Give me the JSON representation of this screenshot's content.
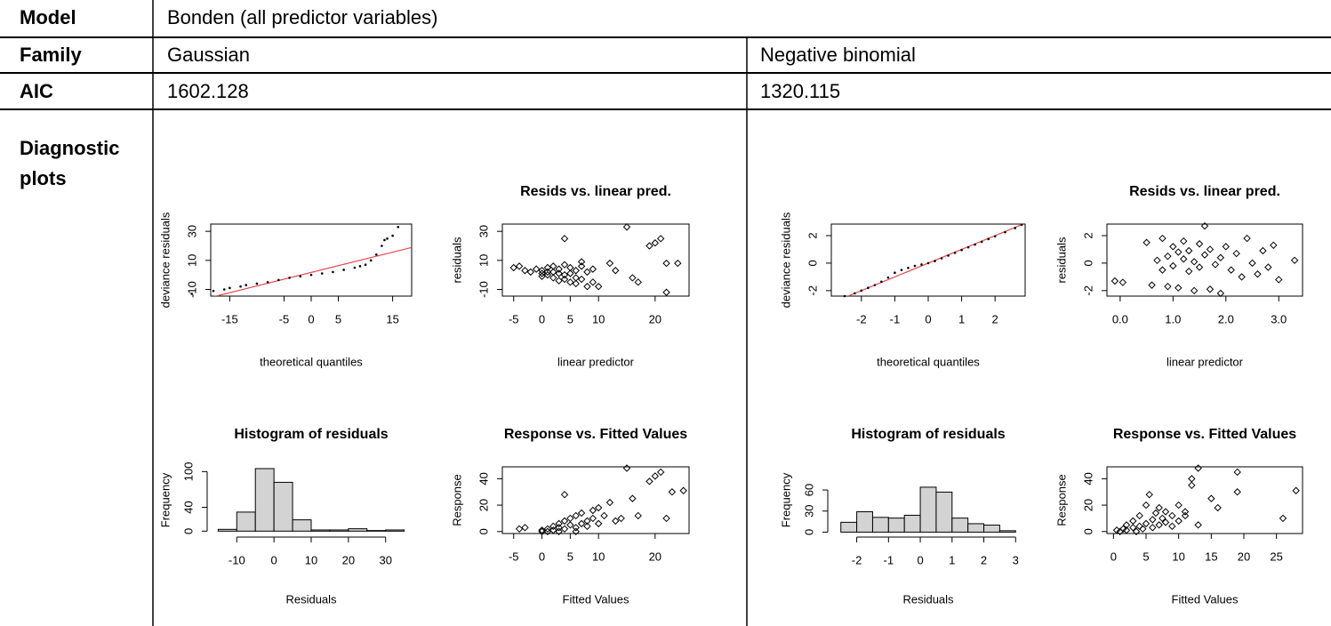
{
  "table": {
    "rows": [
      {
        "label": "Model",
        "cells": [
          "Bonden (all predictor variables)"
        ]
      },
      {
        "label": "Family",
        "cells": [
          "Gaussian",
          "Negative binomial"
        ]
      },
      {
        "label": "AIC",
        "cells": [
          1602.128,
          1320.115
        ]
      }
    ],
    "diagnostic_label": "Diagnostic plots"
  },
  "chart_data": [
    {
      "type": "qq",
      "xlabel": "theoretical quantiles",
      "ylabel": "deviance residuals",
      "xlim": [
        -18.5,
        18.5
      ],
      "ylim": [
        -14.6,
        35
      ],
      "xticks": [
        -15,
        -5,
        0,
        5,
        15
      ],
      "yticks": [
        -10,
        10,
        30
      ],
      "x": [
        -22,
        -18,
        -16,
        -15,
        -13,
        -12,
        -10,
        -8,
        -6,
        -4,
        -2,
        0,
        2,
        4,
        6,
        8,
        9,
        10,
        11,
        12,
        13,
        13.5,
        14,
        15,
        16
      ],
      "y": [
        -13,
        -11,
        -10,
        -9,
        -8,
        -7,
        -6,
        -5,
        -3.5,
        -2,
        -1,
        0,
        1,
        2,
        3.5,
        5,
        6,
        7,
        10,
        14,
        20,
        24,
        25,
        27,
        33
      ],
      "reference_line": {
        "intercept": 1.7,
        "slope": 0.93,
        "color": "#e8474f"
      }
    },
    {
      "type": "scatter",
      "title": "Resids vs. linear pred.",
      "xlabel": "linear predictor",
      "ylabel": "residuals",
      "xlim": [
        -7,
        26
      ],
      "ylim": [
        -14.6,
        35
      ],
      "xticks": [
        -5,
        0,
        5,
        10,
        20
      ],
      "yticks": [
        -10,
        10,
        30
      ],
      "x": [
        -5,
        -4,
        -3,
        -2,
        -1,
        0,
        0,
        1,
        1,
        2,
        2,
        3,
        3,
        4,
        4,
        5,
        5,
        6,
        6,
        7,
        7,
        8,
        8,
        9,
        9,
        3,
        5,
        6,
        7,
        2,
        4,
        1,
        0,
        4,
        15,
        19,
        20,
        21,
        22,
        24,
        22,
        17,
        16,
        13,
        12,
        10
      ],
      "y": [
        5,
        6,
        3,
        2,
        4,
        3,
        -1,
        5,
        0,
        6,
        -2,
        4,
        -4,
        7,
        0,
        5,
        -5,
        3,
        -6,
        6,
        -3,
        2,
        -8,
        4,
        -5,
        1,
        1,
        -2,
        9,
        2,
        -3,
        2,
        1,
        25,
        33,
        20,
        22,
        25,
        8,
        8,
        -12,
        -5,
        -2,
        3,
        8,
        -8
      ]
    },
    {
      "type": "histogram",
      "title": "Histogram of residuals",
      "xlabel": "Residuals",
      "ylabel": "Frequency",
      "xlim": [
        -17,
        37
      ],
      "ylim": [
        -4,
        108
      ],
      "xticks": [
        -10,
        0,
        10,
        20,
        30
      ],
      "yticks": [
        0,
        40,
        100
      ],
      "bins": [
        -15,
        -10,
        -5,
        0,
        5,
        10,
        15,
        20,
        25,
        30,
        35
      ],
      "counts": [
        3,
        32,
        105,
        82,
        19,
        2,
        2,
        4,
        1,
        2
      ],
      "color": "#d3d3d3"
    },
    {
      "type": "scatter",
      "title": "Response vs. Fitted Values",
      "xlabel": "Fitted Values",
      "ylabel": "Response",
      "xlim": [
        -7,
        26
      ],
      "ylim": [
        -1.5,
        49
      ],
      "xticks": [
        -5,
        0,
        5,
        10,
        20
      ],
      "yticks": [
        0,
        20,
        40
      ],
      "x": [
        -4,
        -3,
        0,
        1,
        2,
        2,
        3,
        3,
        4,
        4,
        5,
        5,
        6,
        6,
        7,
        7,
        8,
        8,
        9,
        9,
        10,
        10,
        11,
        12,
        13,
        14,
        15,
        16,
        17,
        19,
        20,
        21,
        22,
        23,
        25,
        4,
        1,
        0,
        6,
        3
      ],
      "y": [
        2,
        3,
        1,
        2,
        1,
        4,
        3,
        6,
        2,
        8,
        5,
        10,
        3,
        12,
        6,
        14,
        8,
        4,
        10,
        16,
        6,
        18,
        12,
        22,
        8,
        10,
        48,
        25,
        12,
        38,
        42,
        45,
        10,
        30,
        31,
        28,
        0,
        0,
        0,
        0
      ]
    },
    {
      "type": "qq",
      "xlabel": "theoretical quantiles",
      "ylabel": "deviance residuals",
      "xlim": [
        -2.9,
        2.9
      ],
      "ylim": [
        -2.4,
        2.84
      ],
      "xticks": [
        -2,
        -1,
        0,
        1,
        2
      ],
      "yticks": [
        -2,
        0,
        2
      ],
      "x": [
        -2.5,
        -2.2,
        -2,
        -1.8,
        -1.6,
        -1.4,
        -1.2,
        -1,
        -0.8,
        -0.6,
        -0.4,
        -0.2,
        0,
        0.2,
        0.4,
        0.6,
        0.8,
        1,
        1.2,
        1.4,
        1.6,
        1.8,
        2,
        2.3,
        2.6,
        2.8
      ],
      "y": [
        -2.4,
        -2.2,
        -2,
        -1.8,
        -1.6,
        -1.35,
        -1.05,
        -0.7,
        -0.5,
        -0.35,
        -0.2,
        -0.1,
        0,
        0.15,
        0.35,
        0.55,
        0.75,
        0.95,
        1.15,
        1.35,
        1.55,
        1.75,
        1.95,
        2.25,
        2.55,
        2.8
      ],
      "reference_line": {
        "intercept": 0,
        "slope": 1,
        "color": "#e8474f"
      }
    },
    {
      "type": "scatter",
      "title": "Resids vs. linear pred.",
      "xlabel": "linear predictor",
      "ylabel": "residuals",
      "xlim": [
        -0.25,
        3.45
      ],
      "ylim": [
        -2.4,
        2.84
      ],
      "xticks": [
        {
          "value": 0,
          "label": "0.0"
        },
        {
          "value": 1,
          "label": "1.0"
        },
        {
          "value": 2,
          "label": "2.0"
        },
        {
          "value": 3,
          "label": "3.0"
        }
      ],
      "yticks": [
        -2,
        0,
        2
      ],
      "x": [
        -0.1,
        0.05,
        0.5,
        0.6,
        0.7,
        0.8,
        0.8,
        0.9,
        0.9,
        1,
        1,
        1.1,
        1.1,
        1.2,
        1.2,
        1.3,
        1.3,
        1.4,
        1.4,
        1.5,
        1.5,
        1.6,
        1.6,
        1.7,
        1.7,
        1.8,
        1.9,
        1.9,
        2,
        2.1,
        2.2,
        2.3,
        2.4,
        2.5,
        2.6,
        2.7,
        2.8,
        2.9,
        3,
        3.3
      ],
      "y": [
        -1.3,
        -1.4,
        1.5,
        -1.6,
        0.2,
        -0.5,
        1.8,
        0.5,
        -1.7,
        -0.2,
        1.2,
        0.8,
        -1.8,
        0.3,
        1.6,
        -0.6,
        0.9,
        -2,
        0.1,
        1.4,
        -0.3,
        2.7,
        0.6,
        -1.9,
        1,
        -0.1,
        0.4,
        -2.2,
        1.2,
        -0.5,
        0.7,
        -1,
        1.8,
        0,
        -0.8,
        0.9,
        -0.3,
        1.3,
        -1.2,
        0.2
      ]
    },
    {
      "type": "histogram",
      "title": "Histogram of residuals",
      "xlabel": "Residuals",
      "ylabel": "Frequency",
      "xlim": [
        -2.8,
        3.3
      ],
      "ylim": [
        -2,
        93
      ],
      "xticks": [
        -2,
        -1,
        0,
        1,
        2,
        3
      ],
      "yticks": [
        0,
        30,
        60
      ],
      "bins": [
        -2.5,
        -2,
        -1.5,
        -1,
        -0.5,
        0,
        0.5,
        1,
        1.5,
        2,
        2.5,
        3
      ],
      "counts": [
        14,
        29,
        21,
        20,
        24,
        64,
        57,
        20,
        12,
        10,
        2
      ],
      "color": "#d3d3d3"
    },
    {
      "type": "scatter",
      "title": "Response vs. Fitted Values",
      "xlabel": "Fitted Values",
      "ylabel": "Response",
      "xlim": [
        -1,
        29
      ],
      "ylim": [
        -1.5,
        49
      ],
      "xticks": [
        0,
        5,
        10,
        15,
        20,
        25
      ],
      "yticks": [
        0,
        20,
        40
      ],
      "x": [
        1,
        1.5,
        2,
        2,
        3,
        3,
        3.5,
        4,
        4,
        4.5,
        5,
        5,
        5.5,
        6,
        6,
        6.5,
        7,
        7,
        7.5,
        8,
        8,
        9,
        9,
        10,
        10,
        11,
        11,
        12,
        12,
        13,
        13,
        15,
        16,
        19,
        19,
        26,
        28,
        0.5
      ],
      "y": [
        0,
        2,
        1,
        5,
        3,
        8,
        0,
        4,
        12,
        2,
        6,
        20,
        28,
        9,
        3,
        14,
        5,
        18,
        10,
        7,
        15,
        4,
        12,
        20,
        8,
        12,
        15,
        40,
        35,
        5,
        48,
        25,
        18,
        45,
        30,
        10,
        31,
        1
      ]
    }
  ]
}
